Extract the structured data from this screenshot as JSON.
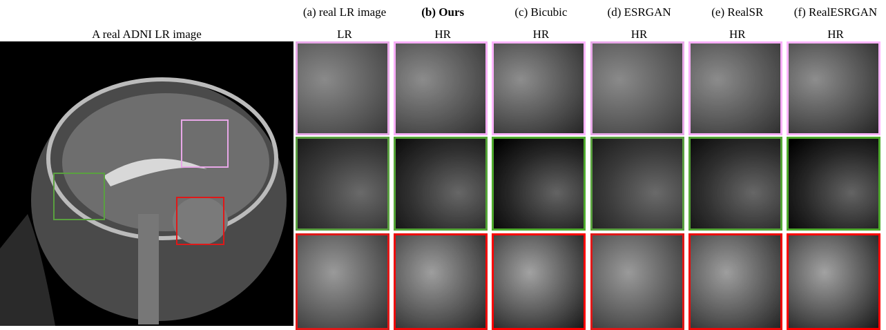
{
  "figure": {
    "overview_title": "A real ADNI LR image",
    "columns": [
      {
        "method": "(a) real LR image",
        "resolution": "LR"
      },
      {
        "method": "(b) Ours",
        "resolution": "HR"
      },
      {
        "method": "(c) Bicubic",
        "resolution": "HR"
      },
      {
        "method": "(d) ESRGAN",
        "resolution": "HR"
      },
      {
        "method": "(e) RealSR",
        "resolution": "HR"
      },
      {
        "method": "(f) RealESRGAN",
        "resolution": "HR"
      }
    ]
  }
}
